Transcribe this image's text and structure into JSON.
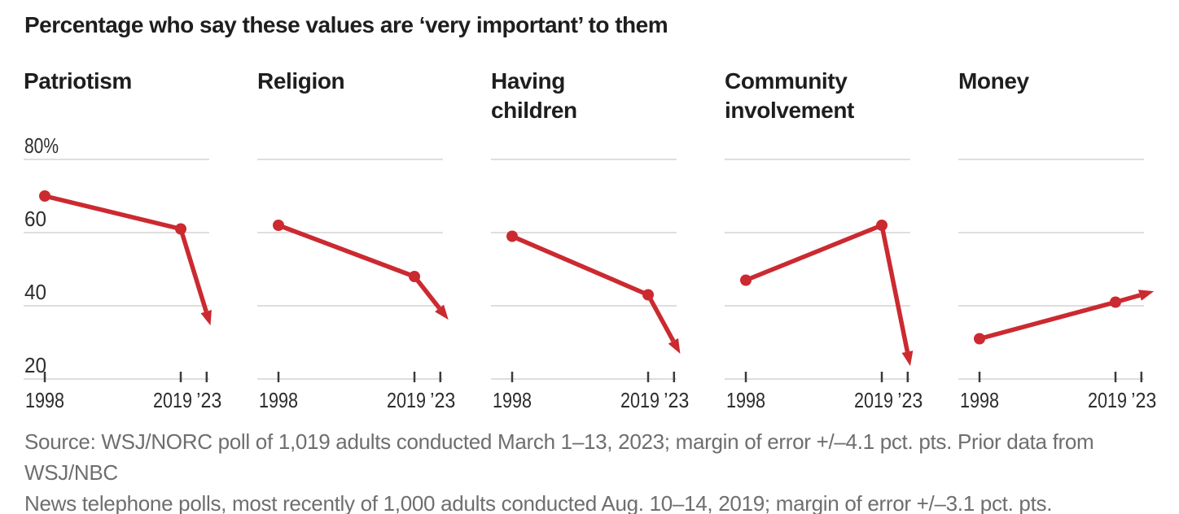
{
  "title": "Percentage who say these values are ‘very important’ to them",
  "source": {
    "line1": "Source: WSJ/NORC poll of 1,019 adults conducted March 1–13, 2023; margin of error +/–4.1 pct. pts. Prior data from WSJ/NBC",
    "line2": "News telephone polls, most recently of 1,000 adults conducted Aug. 10–14, 2019; margin of error +/–3.1 pct. pts."
  },
  "colors": {
    "accent": "#cb2a30",
    "grid": "#dedede",
    "tick": "#3c3c3c",
    "label_text": "#2d2d2d",
    "title_text": "#1e1e1e",
    "source_text": "#6e6e6e"
  },
  "chart_data": {
    "type": "line",
    "layout": "small-multiples",
    "title": "Percentage who say these values are ‘very important’ to them",
    "x": [
      1998,
      2019,
      2023
    ],
    "x_tick_labels": [
      "1998",
      "2019",
      "’23"
    ],
    "ylim": [
      20,
      80
    ],
    "y_ticks": [
      80,
      60,
      40,
      20
    ],
    "y_tick_labels": [
      "80%",
      "60",
      "40",
      "20"
    ],
    "grid": true,
    "arrow_on_last_segment": true,
    "series": [
      {
        "name": "Patriotism",
        "values": [
          70,
          61,
          38
        ]
      },
      {
        "name": "Religion",
        "values": [
          62,
          48,
          39
        ]
      },
      {
        "name": "Having children",
        "values": [
          59,
          43,
          30
        ]
      },
      {
        "name": "Community involvement",
        "values": [
          47,
          62,
          27
        ]
      },
      {
        "name": "Money",
        "values": [
          31,
          41,
          43
        ]
      }
    ]
  }
}
